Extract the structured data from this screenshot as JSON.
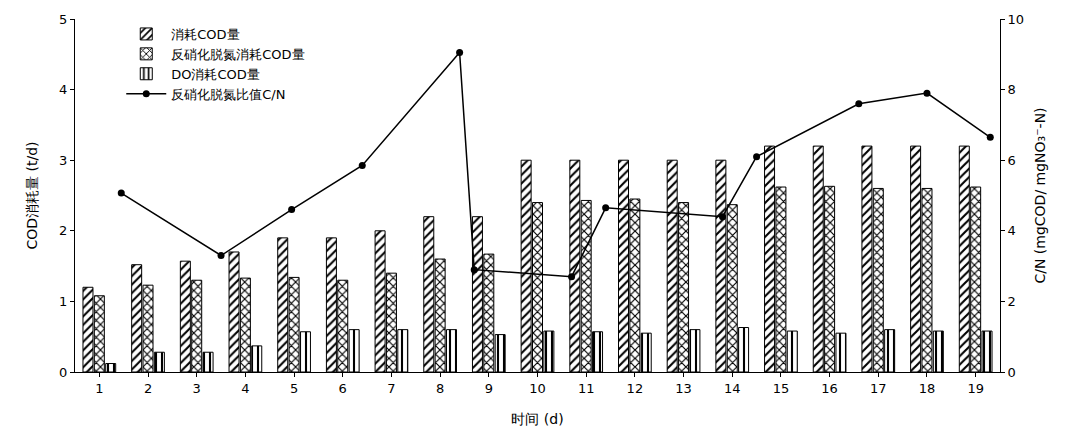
{
  "chart_data": {
    "type": "bar",
    "categories": [
      1,
      2,
      3,
      4,
      5,
      6,
      7,
      8,
      9,
      10,
      11,
      12,
      13,
      14,
      15,
      16,
      17,
      18,
      19
    ],
    "x_label": "时间 (d)",
    "y_label": "COD消耗量 (t/d)",
    "y2_label": "C/N (mgCOD/ mgNO₃⁻-N)",
    "xlim": [
      0.5,
      19.5
    ],
    "xticks": [
      1,
      2,
      3,
      4,
      5,
      6,
      7,
      8,
      9,
      10,
      11,
      12,
      13,
      14,
      15,
      16,
      17,
      18,
      19
    ],
    "ylim": [
      0,
      5
    ],
    "yticks": [
      0,
      1,
      2,
      3,
      4,
      5
    ],
    "y2lim": [
      0,
      10
    ],
    "y2ticks": [
      0,
      2,
      4,
      6,
      8,
      10
    ],
    "grid": false,
    "legend": "upper left",
    "series": [
      {
        "name": "消耗COD量",
        "type": "bar",
        "color": "#000000",
        "marker": "diagonal_hatch",
        "values": [
          1.2,
          1.52,
          1.57,
          1.7,
          1.9,
          1.9,
          2.0,
          2.2,
          2.2,
          3.0,
          3.0,
          3.0,
          3.0,
          3.0,
          3.2,
          3.2,
          3.2,
          3.2,
          3.2
        ]
      },
      {
        "name": "反硝化脱氮消耗COD量",
        "type": "bar",
        "color": "#000000",
        "marker": "cross_hatch",
        "values": [
          1.08,
          1.23,
          1.3,
          1.33,
          1.34,
          1.3,
          1.4,
          1.6,
          1.67,
          2.4,
          2.43,
          2.45,
          2.4,
          2.37,
          2.62,
          2.63,
          2.6,
          2.6,
          2.62
        ]
      },
      {
        "name": "DO消耗COD量",
        "type": "bar",
        "color": "#000000",
        "marker": "vertical_hatch",
        "values": [
          0.12,
          0.28,
          0.28,
          0.37,
          0.57,
          0.6,
          0.6,
          0.6,
          0.53,
          0.58,
          0.57,
          0.55,
          0.6,
          0.63,
          0.58,
          0.55,
          0.6,
          0.58,
          0.58
        ]
      },
      {
        "name": "反硝化脱氮比值C/N",
        "type": "line",
        "axis": "y2",
        "color": "#000000",
        "marker": "circle",
        "line_style": "solid",
        "x": [
          1.45,
          3.5,
          4.95,
          6.4,
          8.4,
          8.7,
          10.7,
          11.4,
          13.8,
          14.5,
          16.6,
          18.0,
          19.3
        ],
        "values": [
          5.07,
          3.3,
          4.6,
          5.85,
          9.05,
          2.9,
          2.7,
          4.65,
          4.4,
          6.1,
          7.6,
          7.9,
          6.65
        ]
      }
    ]
  }
}
